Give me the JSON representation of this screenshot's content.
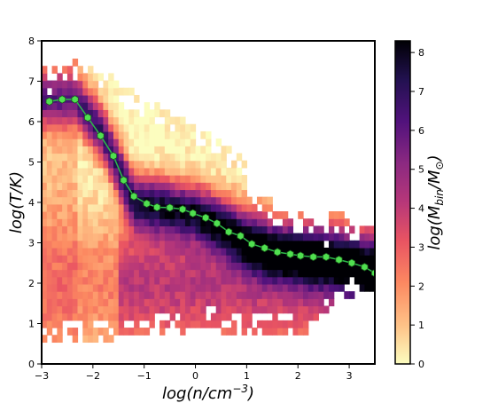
{
  "chart_data": {
    "type": "heatmap",
    "title": "",
    "xlabel": "log(n/cm",
    "xlabel_sup": "−3",
    "xlabel_close": ")",
    "ylabel": "log(T/K)",
    "xlim": [
      -3,
      3.5
    ],
    "ylim": [
      0,
      8
    ],
    "x_ticks": [
      -3,
      -2,
      -1,
      0,
      1,
      2,
      3
    ],
    "y_ticks": [
      0,
      1,
      2,
      3,
      4,
      5,
      6,
      7,
      8
    ],
    "x_tick_labels": [
      "−3",
      "−2",
      "−1",
      "0",
      "1",
      "2",
      "3"
    ],
    "y_tick_labels": [
      "0",
      "1",
      "2",
      "3",
      "4",
      "5",
      "6",
      "7",
      "8"
    ],
    "grid": false,
    "colormap": "magma_r",
    "colorbar": {
      "label_main": "log(M",
      "label_sub1": "bin",
      "label_mid": "/M",
      "label_sub2": "⊙",
      "label_close": ")",
      "range": [
        0,
        8.3
      ],
      "ticks": [
        0,
        1,
        2,
        3,
        4,
        5,
        6,
        7,
        8
      ],
      "tick_labels": [
        "0",
        "1",
        "2",
        "3",
        "4",
        "5",
        "6",
        "7",
        "8"
      ]
    },
    "median_series": {
      "color": "#2db84a",
      "marker_face": "#50e050",
      "marker_edge": "#1a5a1a",
      "x": [
        -2.85,
        -2.6,
        -2.35,
        -2.1,
        -1.85,
        -1.6,
        -1.4,
        -1.2,
        -0.95,
        -0.75,
        -0.5,
        -0.25,
        -0.05,
        0.2,
        0.42,
        0.65,
        0.88,
        1.1,
        1.35,
        1.6,
        1.85,
        2.05,
        2.3,
        2.55,
        2.8,
        3.05,
        3.3,
        3.5
      ],
      "y": [
        6.5,
        6.55,
        6.55,
        6.1,
        5.65,
        5.15,
        4.55,
        4.15,
        3.97,
        3.88,
        3.87,
        3.83,
        3.73,
        3.62,
        3.48,
        3.27,
        3.17,
        2.97,
        2.87,
        2.77,
        2.72,
        2.68,
        2.65,
        2.65,
        2.58,
        2.5,
        2.4,
        2.25
      ]
    },
    "ridge_x": [
      -3.0,
      -2.35,
      -1.8,
      -1.4,
      -1.2,
      -0.5,
      0.0,
      0.5,
      1.0,
      1.5,
      2.0,
      2.5,
      3.0,
      3.5
    ],
    "ridge_y": [
      6.55,
      6.55,
      5.7,
      4.6,
      4.05,
      3.87,
      3.75,
      3.45,
      3.05,
      2.8,
      2.7,
      2.62,
      2.5,
      2.3
    ]
  }
}
